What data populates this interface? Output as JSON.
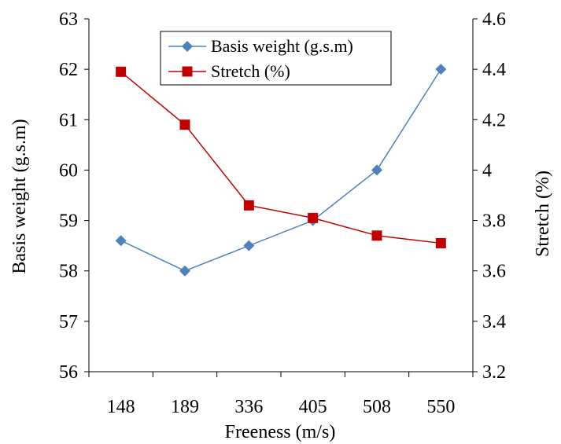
{
  "chart_data": {
    "type": "line",
    "title": "",
    "xlabel": "Freeness (m/s)",
    "ylabel_left": "Basis weight (g.s.m)",
    "ylabel_right": "Stretch (%)",
    "categories": [
      "148",
      "189",
      "336",
      "405",
      "508",
      "550"
    ],
    "ylim_left": [
      56,
      63
    ],
    "yticks_left": [
      "56",
      "57",
      "58",
      "59",
      "60",
      "61",
      "62",
      "63"
    ],
    "ylim_right": [
      3.2,
      4.6
    ],
    "yticks_right": [
      "3.2",
      "3.4",
      "3.6",
      "3.8",
      "4",
      "4.2",
      "4.4",
      "4.6"
    ],
    "grid": false,
    "legend_position": "top-center",
    "series": [
      {
        "name": "Basis weight (g.s.m)",
        "axis": "left",
        "marker": "diamond",
        "color": "#4F81BD",
        "values": [
          58.6,
          58.0,
          58.5,
          59.0,
          60.0,
          62.0
        ]
      },
      {
        "name": "Stretch (%)",
        "axis": "right",
        "marker": "square",
        "color": "#C00000",
        "values": [
          4.39,
          4.18,
          3.86,
          3.81,
          3.74,
          3.71
        ]
      }
    ]
  }
}
